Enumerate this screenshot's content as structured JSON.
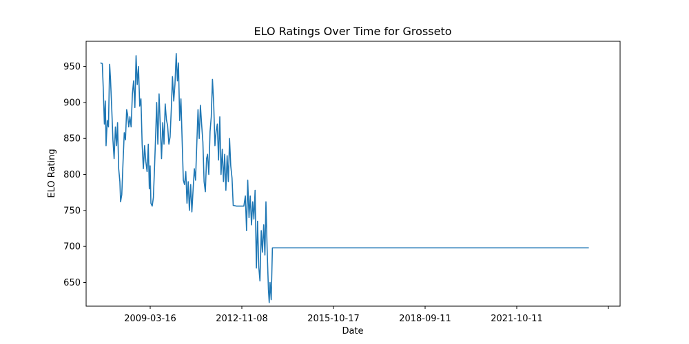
{
  "chart_data": {
    "type": "line",
    "title": "ELO Ratings Over Time for Grosseto",
    "xlabel": "Date",
    "ylabel": "ELO Rating",
    "x_ticks": [
      "2009-03-16",
      "2012-11-08",
      "2015-10-17",
      "2018-09-11",
      "2021-10-11",
      ""
    ],
    "y_ticks": [
      650,
      700,
      750,
      800,
      850,
      900,
      950
    ],
    "ylim": [
      617,
      985
    ],
    "grid": false,
    "series": [
      {
        "color": "#1f77b4",
        "points": [
          [
            "2007-07-01",
            955
          ],
          [
            "2007-07-25",
            954
          ],
          [
            "2007-08-05",
            922
          ],
          [
            "2007-08-20",
            870
          ],
          [
            "2007-09-01",
            902
          ],
          [
            "2007-09-10",
            840
          ],
          [
            "2007-09-25",
            875
          ],
          [
            "2007-10-10",
            866
          ],
          [
            "2007-10-25",
            953
          ],
          [
            "2007-11-05",
            932
          ],
          [
            "2007-11-20",
            892
          ],
          [
            "2007-12-05",
            848
          ],
          [
            "2007-12-20",
            822
          ],
          [
            "2008-01-05",
            866
          ],
          [
            "2008-01-20",
            840
          ],
          [
            "2008-02-01",
            872
          ],
          [
            "2008-02-15",
            808
          ],
          [
            "2008-03-01",
            790
          ],
          [
            "2008-03-10",
            762
          ],
          [
            "2008-03-25",
            772
          ],
          [
            "2008-04-10",
            818
          ],
          [
            "2008-04-25",
            858
          ],
          [
            "2008-05-10",
            848
          ],
          [
            "2008-05-25",
            890
          ],
          [
            "2008-06-05",
            884
          ],
          [
            "2008-06-20",
            866
          ],
          [
            "2008-07-05",
            880
          ],
          [
            "2008-07-20",
            866
          ],
          [
            "2008-08-05",
            912
          ],
          [
            "2008-08-20",
            930
          ],
          [
            "2008-09-05",
            893
          ],
          [
            "2008-09-20",
            965
          ],
          [
            "2008-10-05",
            925
          ],
          [
            "2008-10-20",
            950
          ],
          [
            "2008-11-05",
            895
          ],
          [
            "2008-11-20",
            905
          ],
          [
            "2008-12-05",
            842
          ],
          [
            "2008-12-20",
            808
          ],
          [
            "2009-01-05",
            840
          ],
          [
            "2009-01-20",
            818
          ],
          [
            "2009-02-05",
            804
          ],
          [
            "2009-02-20",
            842
          ],
          [
            "2009-03-05",
            780
          ],
          [
            "2009-03-15",
            812
          ],
          [
            "2009-03-25",
            760
          ],
          [
            "2009-04-10",
            756
          ],
          [
            "2009-04-25",
            768
          ],
          [
            "2009-05-10",
            812
          ],
          [
            "2009-05-25",
            860
          ],
          [
            "2009-06-05",
            900
          ],
          [
            "2009-06-20",
            842
          ],
          [
            "2009-07-05",
            912
          ],
          [
            "2009-07-20",
            868
          ],
          [
            "2009-08-05",
            822
          ],
          [
            "2009-08-20",
            872
          ],
          [
            "2009-09-05",
            842
          ],
          [
            "2009-09-20",
            898
          ],
          [
            "2009-10-05",
            876
          ],
          [
            "2009-10-20",
            868
          ],
          [
            "2009-11-05",
            842
          ],
          [
            "2009-11-20",
            852
          ],
          [
            "2009-12-05",
            890
          ],
          [
            "2009-12-20",
            936
          ],
          [
            "2010-01-05",
            902
          ],
          [
            "2010-01-20",
            925
          ],
          [
            "2010-02-05",
            968
          ],
          [
            "2010-02-20",
            930
          ],
          [
            "2010-03-05",
            955
          ],
          [
            "2010-03-20",
            875
          ],
          [
            "2010-04-05",
            905
          ],
          [
            "2010-04-20",
            848
          ],
          [
            "2010-05-05",
            792
          ],
          [
            "2010-05-20",
            786
          ],
          [
            "2010-06-05",
            804
          ],
          [
            "2010-06-20",
            760
          ],
          [
            "2010-07-05",
            790
          ],
          [
            "2010-07-20",
            750
          ],
          [
            "2010-08-05",
            786
          ],
          [
            "2010-08-20",
            748
          ],
          [
            "2010-09-05",
            780
          ],
          [
            "2010-09-20",
            808
          ],
          [
            "2010-10-05",
            792
          ],
          [
            "2010-10-20",
            840
          ],
          [
            "2010-11-05",
            890
          ],
          [
            "2010-11-20",
            850
          ],
          [
            "2010-12-05",
            896
          ],
          [
            "2010-12-20",
            870
          ],
          [
            "2011-01-05",
            845
          ],
          [
            "2011-01-20",
            790
          ],
          [
            "2011-02-05",
            776
          ],
          [
            "2011-02-20",
            822
          ],
          [
            "2011-03-05",
            828
          ],
          [
            "2011-03-20",
            800
          ],
          [
            "2011-04-05",
            860
          ],
          [
            "2011-04-20",
            880
          ],
          [
            "2011-05-05",
            932
          ],
          [
            "2011-05-20",
            900
          ],
          [
            "2011-06-05",
            840
          ],
          [
            "2011-06-20",
            860
          ],
          [
            "2011-07-05",
            870
          ],
          [
            "2011-07-20",
            820
          ],
          [
            "2011-08-05",
            880
          ],
          [
            "2011-08-20",
            800
          ],
          [
            "2011-09-05",
            835
          ],
          [
            "2011-09-20",
            790
          ],
          [
            "2011-10-05",
            828
          ],
          [
            "2011-10-20",
            778
          ],
          [
            "2011-11-05",
            826
          ],
          [
            "2011-11-20",
            790
          ],
          [
            "2011-12-05",
            850
          ],
          [
            "2011-12-20",
            812
          ],
          [
            "2012-01-05",
            795
          ],
          [
            "2012-01-20",
            757
          ],
          [
            "2012-03-01",
            756
          ],
          [
            "2012-05-01",
            756
          ],
          [
            "2012-06-01",
            756
          ],
          [
            "2012-06-20",
            770
          ],
          [
            "2012-07-05",
            722
          ],
          [
            "2012-07-20",
            792
          ],
          [
            "2012-08-05",
            740
          ],
          [
            "2012-08-20",
            770
          ],
          [
            "2012-09-05",
            730
          ],
          [
            "2012-09-20",
            762
          ],
          [
            "2012-10-05",
            738
          ],
          [
            "2012-10-20",
            778
          ],
          [
            "2012-11-05",
            670
          ],
          [
            "2012-11-20",
            735
          ],
          [
            "2012-12-05",
            672
          ],
          [
            "2012-12-20",
            652
          ],
          [
            "2013-01-05",
            722
          ],
          [
            "2013-01-20",
            692
          ],
          [
            "2013-02-05",
            730
          ],
          [
            "2013-02-20",
            688
          ],
          [
            "2013-03-05",
            762
          ],
          [
            "2013-03-20",
            696
          ],
          [
            "2013-04-05",
            640
          ],
          [
            "2013-04-15",
            622
          ],
          [
            "2013-04-25",
            650
          ],
          [
            "2013-05-10",
            626
          ],
          [
            "2013-05-25",
            698
          ],
          [
            "2024-04-01",
            698
          ]
        ]
      }
    ]
  }
}
